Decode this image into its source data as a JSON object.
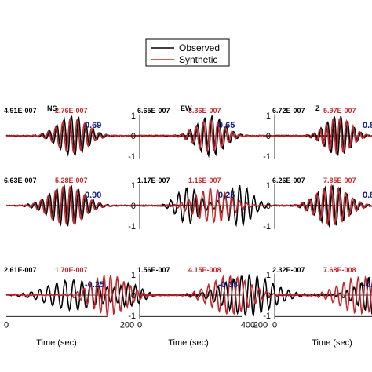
{
  "colors": {
    "observed": "#000000",
    "synthetic": "#c0282d",
    "obs_amp_text": "#000000",
    "syn_amp_text": "#c0282d",
    "corr_text": "#1a237e"
  },
  "legend": {
    "entries": [
      "Observed",
      "Synthetic"
    ]
  },
  "chart_data": {
    "type": "line",
    "xlabel": "Time (sec)",
    "ylim": [
      -1,
      1
    ],
    "y_ticks": [
      "1",
      "0",
      "-1"
    ],
    "columns": [
      {
        "component": "NS",
        "x_ticks": [
          "0",
          "200",
          "400"
        ],
        "xlim": [
          0,
          400
        ]
      },
      {
        "component": "EW",
        "x_ticks": [
          "0",
          "200",
          "400"
        ],
        "xlim": [
          0,
          400
        ]
      },
      {
        "component": "Z",
        "x_ticks": [
          "0",
          "200"
        ],
        "xlim": [
          0,
          400
        ]
      }
    ],
    "panels": [
      {
        "row": 0,
        "col": 0,
        "observed_amp": "4.91E-007",
        "synthetic_amp": "2.76E-007",
        "correlation": "0.69"
      },
      {
        "row": 0,
        "col": 1,
        "observed_amp": "6.65E-007",
        "synthetic_amp": "3.36E-007",
        "correlation": "0.65"
      },
      {
        "row": 0,
        "col": 2,
        "observed_amp": "6.72E-007",
        "synthetic_amp": "5.97E-007",
        "correlation": "0.8"
      },
      {
        "row": 1,
        "col": 0,
        "observed_amp": "6.63E-007",
        "synthetic_amp": "5.28E-007",
        "correlation": "0.90"
      },
      {
        "row": 1,
        "col": 1,
        "observed_amp": "1.17E-007",
        "synthetic_amp": "1.16E-007",
        "correlation": "0.25"
      },
      {
        "row": 1,
        "col": 2,
        "observed_amp": "6.26E-007",
        "synthetic_amp": "7.85E-007",
        "correlation": "0.8"
      },
      {
        "row": 2,
        "col": 0,
        "observed_amp": "2.61E-007",
        "synthetic_amp": "1.70E-007",
        "correlation": "-0.25"
      },
      {
        "row": 2,
        "col": 1,
        "observed_amp": "1.56E-007",
        "synthetic_amp": "4.15E-008",
        "correlation": "-0.33"
      },
      {
        "row": 2,
        "col": 2,
        "observed_amp": "2.32E-007",
        "synthetic_amp": "7.68E-008",
        "correlation": "-0.3"
      }
    ]
  }
}
